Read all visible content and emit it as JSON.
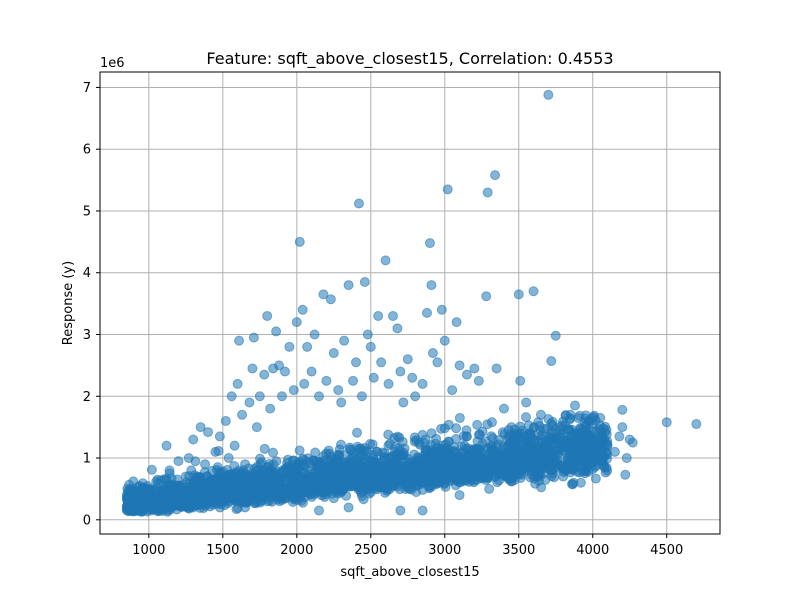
{
  "chart_data": {
    "type": "scatter",
    "title": "Feature: sqft_above_closest15, Correlation: 0.4553",
    "xlabel": "sqft_above_closest15",
    "ylabel": "Response (y)",
    "y_offset_label": "1e6",
    "xlim": [
      670,
      4860
    ],
    "ylim": [
      -230000,
      7250000
    ],
    "xticks": [
      1000,
      1500,
      2000,
      2500,
      3000,
      3500,
      4000,
      4500
    ],
    "xtick_labels": [
      "1000",
      "1500",
      "2000",
      "2500",
      "3000",
      "3500",
      "4000",
      "4500"
    ],
    "yticks": [
      0,
      1000000,
      2000000,
      3000000,
      4000000,
      5000000,
      6000000,
      7000000
    ],
    "ytick_labels": [
      "0",
      "1",
      "2",
      "3",
      "4",
      "5",
      "6",
      "7"
    ],
    "grid": true,
    "marker_color": "#1f77b4",
    "marker_alpha": 0.55,
    "series": [
      {
        "points": [
          [
            860,
            280000
          ],
          [
            880,
            180000
          ],
          [
            900,
            330000
          ],
          [
            930,
            140000
          ],
          [
            950,
            400000
          ],
          [
            980,
            350000
          ],
          [
            1000,
            500000
          ],
          [
            1020,
            230000
          ],
          [
            1050,
            620000
          ],
          [
            1080,
            300000
          ],
          [
            1100,
            450000
          ],
          [
            1120,
            1200000
          ],
          [
            1140,
            800000
          ],
          [
            1160,
            550000
          ],
          [
            1200,
            950000
          ],
          [
            1210,
            380000
          ],
          [
            1250,
            700000
          ],
          [
            1270,
            1000000
          ],
          [
            1300,
            1300000
          ],
          [
            1320,
            600000
          ],
          [
            1350,
            1500000
          ],
          [
            1380,
            900000
          ],
          [
            1400,
            1420000
          ],
          [
            1420,
            650000
          ],
          [
            1450,
            1100000
          ],
          [
            1480,
            1350000
          ],
          [
            1500,
            780000
          ],
          [
            1520,
            1600000
          ],
          [
            1540,
            1000000
          ],
          [
            1560,
            2000000
          ],
          [
            1580,
            1200000
          ],
          [
            1600,
            2200000
          ],
          [
            1610,
            2900000
          ],
          [
            1630,
            1700000
          ],
          [
            1650,
            900000
          ],
          [
            1680,
            1900000
          ],
          [
            1700,
            2450000
          ],
          [
            1710,
            2950000
          ],
          [
            1730,
            1500000
          ],
          [
            1750,
            2000000
          ],
          [
            1780,
            2350000
          ],
          [
            1800,
            3300000
          ],
          [
            1820,
            1800000
          ],
          [
            1840,
            2450000
          ],
          [
            1860,
            3050000
          ],
          [
            1880,
            2500000
          ],
          [
            1900,
            2000000
          ],
          [
            1920,
            2400000
          ],
          [
            1950,
            2800000
          ],
          [
            1980,
            2100000
          ],
          [
            2000,
            3200000
          ],
          [
            2020,
            4500000
          ],
          [
            2040,
            3400000
          ],
          [
            2050,
            2200000
          ],
          [
            2070,
            2800000
          ],
          [
            2100,
            2400000
          ],
          [
            2120,
            3000000
          ],
          [
            2150,
            2000000
          ],
          [
            2180,
            3650000
          ],
          [
            2200,
            2250000
          ],
          [
            2230,
            3570000
          ],
          [
            2250,
            2700000
          ],
          [
            2280,
            2100000
          ],
          [
            2300,
            1900000
          ],
          [
            2320,
            2900000
          ],
          [
            2350,
            3800000
          ],
          [
            2380,
            2250000
          ],
          [
            2400,
            2550000
          ],
          [
            2420,
            5120000
          ],
          [
            2440,
            2000000
          ],
          [
            2460,
            3850000
          ],
          [
            2480,
            3000000
          ],
          [
            2500,
            2800000
          ],
          [
            2520,
            2300000
          ],
          [
            2550,
            3300000
          ],
          [
            2570,
            2550000
          ],
          [
            2600,
            4200000
          ],
          [
            2620,
            2200000
          ],
          [
            2650,
            3300000
          ],
          [
            2680,
            3100000
          ],
          [
            2700,
            2400000
          ],
          [
            2720,
            1900000
          ],
          [
            2750,
            2600000
          ],
          [
            2780,
            2300000
          ],
          [
            2800,
            2000000
          ],
          [
            2850,
            2200000
          ],
          [
            2880,
            3350000
          ],
          [
            2900,
            4480000
          ],
          [
            2910,
            3800000
          ],
          [
            2920,
            2700000
          ],
          [
            2950,
            2550000
          ],
          [
            2980,
            3400000
          ],
          [
            3000,
            2900000
          ],
          [
            3020,
            5350000
          ],
          [
            3050,
            2100000
          ],
          [
            3080,
            3200000
          ],
          [
            3100,
            2500000
          ],
          [
            3150,
            2350000
          ],
          [
            3200,
            2450000
          ],
          [
            3230,
            2250000
          ],
          [
            3280,
            3620000
          ],
          [
            3290,
            5300000
          ],
          [
            3340,
            5580000
          ],
          [
            3350,
            2450000
          ],
          [
            3400,
            1800000
          ],
          [
            3450,
            1500000
          ],
          [
            3500,
            3650000
          ],
          [
            3510,
            2250000
          ],
          [
            3550,
            1900000
          ],
          [
            3600,
            3700000
          ],
          [
            3650,
            1700000
          ],
          [
            3700,
            6880000
          ],
          [
            3720,
            2570000
          ],
          [
            3750,
            2980000
          ],
          [
            3780,
            1500000
          ],
          [
            3800,
            1200000
          ],
          [
            3850,
            1700000
          ],
          [
            3880,
            1850000
          ],
          [
            3900,
            1400000
          ],
          [
            3950,
            800000
          ],
          [
            3980,
            1000000
          ],
          [
            4000,
            820000
          ],
          [
            4150,
            1100000
          ],
          [
            4180,
            1350000
          ],
          [
            4200,
            1780000
          ],
          [
            4220,
            730000
          ],
          [
            4250,
            1300000
          ],
          [
            4500,
            1580000
          ],
          [
            4700,
            1550000
          ],
          [
            3920,
            600000
          ],
          [
            3860,
            580000
          ],
          [
            3700,
            1000000
          ],
          [
            3750,
            900000
          ],
          [
            2150,
            150000
          ],
          [
            2350,
            200000
          ],
          [
            2700,
            150000
          ],
          [
            2850,
            150000
          ],
          [
            2600,
            700000
          ],
          [
            3300,
            500000
          ],
          [
            3100,
            400000
          ],
          [
            1650,
            200000
          ],
          [
            1800,
            300000
          ],
          [
            1300,
            200000
          ],
          [
            1150,
            250000
          ],
          [
            1950,
            400000
          ],
          [
            2250,
            350000
          ],
          [
            2500,
            450000
          ],
          [
            2950,
            600000
          ],
          [
            3250,
            800000
          ],
          [
            3450,
            900000
          ],
          [
            3600,
            950000
          ],
          [
            3800,
            700000
          ],
          [
            3900,
            1100000
          ],
          [
            4100,
            1200000
          ],
          [
            4200,
            1500000
          ],
          [
            4230,
            1000000
          ],
          [
            4270,
            1250000
          ],
          [
            3550,
            1100000
          ],
          [
            3350,
            1200000
          ],
          [
            3150,
            1350000
          ]
        ]
      }
    ]
  }
}
